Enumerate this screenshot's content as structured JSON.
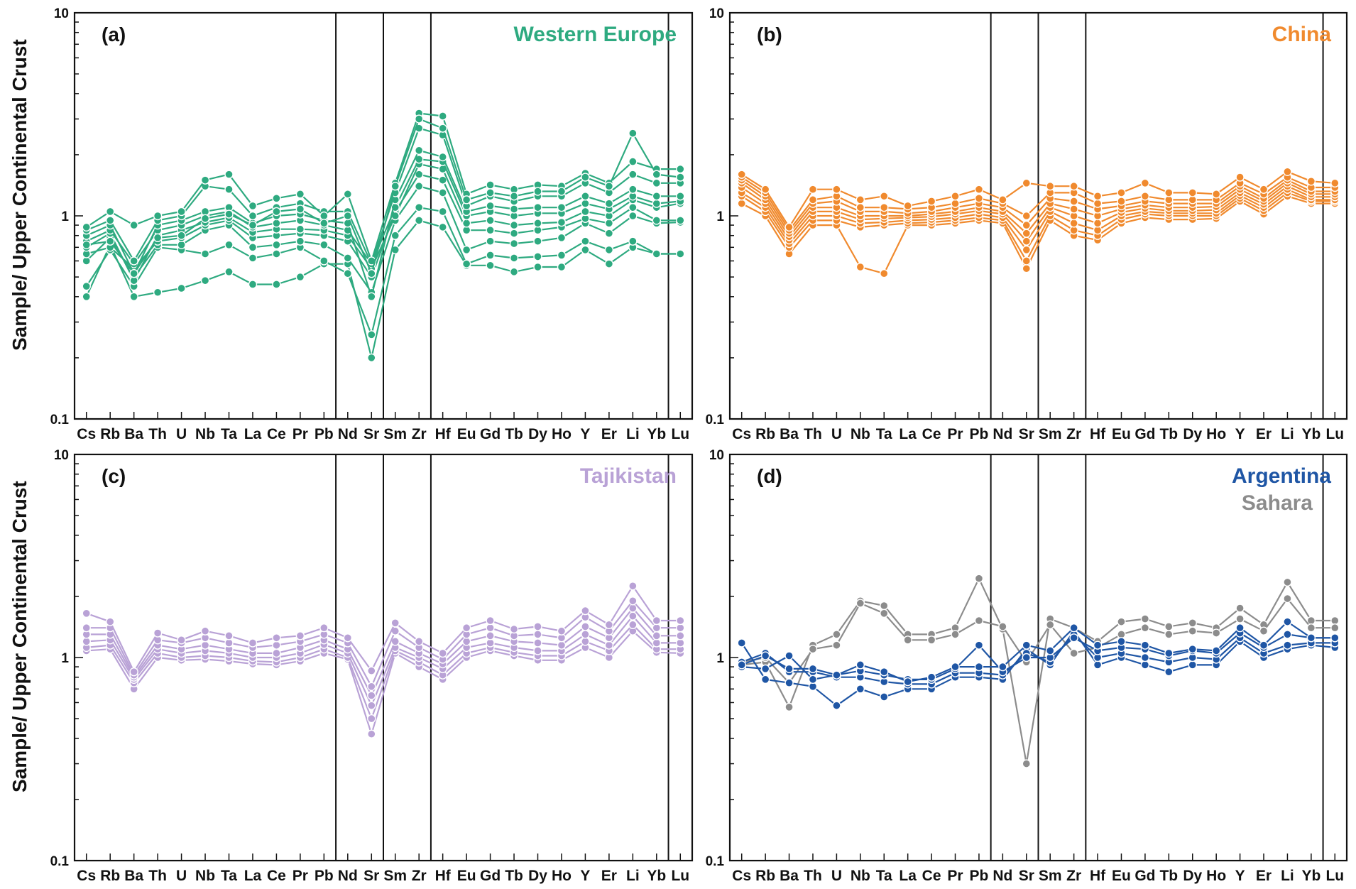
{
  "y_axis_title": "Sample/ Upper Continental Crust",
  "chart_data": [
    {
      "type": "line",
      "panel_label": "(a)",
      "region_label": "Western Europe",
      "region_color": "#2eaa80",
      "yscale": "log",
      "ylim": [
        0.1,
        10
      ],
      "y_ticks": [
        "0.1",
        "1",
        "10"
      ],
      "categories": [
        "Cs",
        "Rb",
        "Ba",
        "Th",
        "U",
        "Nb",
        "Ta",
        "La",
        "Ce",
        "Pr",
        "Pb",
        "Nd",
        "Sr",
        "Sm",
        "Zr",
        "Hf",
        "Eu",
        "Gd",
        "Tb",
        "Dy",
        "Ho",
        "Y",
        "Er",
        "Li",
        "Yb",
        "Lu"
      ],
      "vertical_lines_after": [
        "Pb",
        "Sr",
        "Zr",
        "Yb"
      ],
      "series": [
        {
          "color": "#2eaa80",
          "values": [
            0.4,
            0.72,
            0.4,
            0.42,
            0.44,
            0.48,
            0.53,
            0.46,
            0.46,
            0.5,
            0.58,
            0.58,
            0.2,
            0.68,
            0.95,
            0.88,
            0.57,
            0.57,
            0.53,
            0.56,
            0.56,
            0.68,
            0.58,
            0.7,
            0.65,
            0.65
          ]
        },
        {
          "color": "#2eaa80",
          "values": [
            0.45,
            0.68,
            0.45,
            0.7,
            0.68,
            0.65,
            0.72,
            0.62,
            0.65,
            0.7,
            0.6,
            0.52,
            0.26,
            0.8,
            1.1,
            1.05,
            0.58,
            0.64,
            0.62,
            0.63,
            0.64,
            0.75,
            0.68,
            0.75,
            0.65,
            0.65
          ]
        },
        {
          "color": "#2eaa80",
          "values": [
            0.6,
            0.78,
            0.5,
            0.72,
            0.72,
            0.85,
            0.9,
            0.7,
            0.72,
            0.75,
            0.72,
            0.62,
            0.42,
            0.95,
            1.4,
            1.3,
            0.68,
            0.75,
            0.73,
            0.75,
            0.78,
            0.92,
            0.82,
            1.0,
            0.92,
            0.93
          ]
        },
        {
          "color": "#2eaa80",
          "values": [
            0.65,
            0.7,
            0.55,
            0.75,
            0.78,
            0.9,
            0.95,
            0.78,
            0.8,
            0.82,
            0.8,
            0.75,
            0.5,
            1.05,
            1.6,
            1.5,
            0.85,
            0.85,
            0.82,
            0.85,
            0.88,
            0.97,
            0.92,
            1.1,
            0.95,
            0.95
          ]
        },
        {
          "color": "#2eaa80",
          "values": [
            0.7,
            0.82,
            0.48,
            0.8,
            0.85,
            0.93,
            0.98,
            0.83,
            0.86,
            0.86,
            0.85,
            0.8,
            0.55,
            1.0,
            1.8,
            1.7,
            0.92,
            0.95,
            0.9,
            0.92,
            0.93,
            1.05,
            1.0,
            1.2,
            1.1,
            1.15
          ]
        },
        {
          "color": "#2eaa80",
          "values": [
            0.75,
            0.85,
            0.58,
            0.85,
            0.9,
            1.0,
            1.05,
            0.88,
            0.92,
            0.95,
            0.9,
            0.85,
            0.58,
            1.1,
            1.9,
            1.85,
            1.0,
            1.05,
            1.0,
            1.03,
            1.03,
            1.15,
            1.08,
            1.25,
            1.15,
            1.18
          ]
        },
        {
          "color": "#2eaa80",
          "values": [
            0.8,
            0.9,
            0.52,
            0.9,
            0.95,
            1.05,
            1.1,
            0.92,
            1.0,
            1.02,
            0.95,
            0.92,
            0.4,
            1.2,
            2.1,
            1.95,
            1.05,
            1.12,
            1.08,
            1.1,
            1.1,
            1.25,
            1.15,
            1.35,
            1.25,
            1.25
          ]
        },
        {
          "color": "#2eaa80",
          "values": [
            0.85,
            0.95,
            0.6,
            0.95,
            1.0,
            1.4,
            1.35,
            1.0,
            1.1,
            1.15,
            1.05,
            1.05,
            0.58,
            1.3,
            2.7,
            2.5,
            1.12,
            1.25,
            1.18,
            1.25,
            1.25,
            1.45,
            1.3,
            1.6,
            1.45,
            1.45
          ]
        },
        {
          "color": "#2eaa80",
          "values": [
            0.88,
            1.05,
            0.9,
            1.0,
            1.05,
            1.5,
            1.6,
            1.12,
            1.22,
            1.28,
            1.0,
            1.28,
            0.6,
            1.45,
            3.2,
            3.1,
            1.28,
            1.42,
            1.35,
            1.42,
            1.4,
            1.62,
            1.45,
            1.85,
            1.7,
            1.7
          ]
        },
        {
          "color": "#2eaa80",
          "values": [
            0.72,
            0.75,
            0.52,
            0.78,
            0.8,
            0.97,
            1.02,
            0.9,
            1.05,
            1.08,
            0.92,
            1.0,
            0.52,
            1.4,
            3.0,
            2.7,
            1.2,
            1.3,
            1.25,
            1.32,
            1.32,
            1.55,
            1.4,
            2.55,
            1.6,
            1.55
          ]
        }
      ]
    },
    {
      "type": "line",
      "panel_label": "(b)",
      "region_label": "China",
      "region_color": "#f08a2e",
      "yscale": "log",
      "ylim": [
        0.1,
        10
      ],
      "y_ticks": [
        "0.1",
        "1",
        "10"
      ],
      "categories": [
        "Cs",
        "Rb",
        "Ba",
        "Th",
        "U",
        "Nb",
        "Ta",
        "La",
        "Ce",
        "Pr",
        "Pb",
        "Nd",
        "Sr",
        "Sm",
        "Zr",
        "Hf",
        "Eu",
        "Gd",
        "Tb",
        "Dy",
        "Ho",
        "Y",
        "Er",
        "Li",
        "Yb",
        "Lu"
      ],
      "vertical_lines_after": [
        "Pb",
        "Sr",
        "Zr",
        "Yb"
      ],
      "series": [
        {
          "color": "#f08a2e",
          "values": [
            1.15,
            1.0,
            0.65,
            0.9,
            0.9,
            0.56,
            0.52,
            0.9,
            0.9,
            0.92,
            0.95,
            0.92,
            0.55,
            0.95,
            0.8,
            0.76,
            0.92,
            0.98,
            0.96,
            0.96,
            0.97,
            1.18,
            1.02,
            1.25,
            1.15,
            1.15
          ]
        },
        {
          "color": "#f08a2e",
          "values": [
            1.25,
            1.05,
            0.7,
            0.95,
            0.95,
            0.88,
            0.9,
            0.92,
            0.93,
            0.95,
            0.98,
            0.95,
            0.6,
            1.0,
            0.85,
            0.8,
            0.96,
            1.02,
            1.0,
            1.0,
            1.0,
            1.22,
            1.06,
            1.3,
            1.18,
            1.18
          ]
        },
        {
          "color": "#f08a2e",
          "values": [
            1.3,
            1.1,
            0.73,
            1.0,
            1.0,
            0.92,
            0.93,
            0.95,
            0.96,
            0.98,
            1.02,
            0.98,
            0.68,
            1.05,
            0.92,
            0.85,
            1.0,
            1.05,
            1.03,
            1.03,
            1.03,
            1.26,
            1.1,
            1.35,
            1.2,
            1.2
          ]
        },
        {
          "color": "#f08a2e",
          "values": [
            1.38,
            1.15,
            0.76,
            1.05,
            1.05,
            0.96,
            0.97,
            0.98,
            0.99,
            1.02,
            1.06,
            1.02,
            0.75,
            1.1,
            1.0,
            0.92,
            1.04,
            1.09,
            1.06,
            1.06,
            1.07,
            1.3,
            1.14,
            1.4,
            1.24,
            1.24
          ]
        },
        {
          "color": "#f08a2e",
          "values": [
            1.45,
            1.2,
            0.79,
            1.1,
            1.1,
            1.0,
            1.0,
            1.0,
            1.02,
            1.05,
            1.1,
            1.05,
            0.82,
            1.15,
            1.08,
            1.0,
            1.08,
            1.13,
            1.1,
            1.1,
            1.11,
            1.35,
            1.18,
            1.45,
            1.28,
            1.28
          ]
        },
        {
          "color": "#f08a2e",
          "values": [
            1.5,
            1.25,
            0.82,
            1.15,
            1.18,
            1.05,
            1.05,
            1.03,
            1.05,
            1.1,
            1.15,
            1.1,
            0.9,
            1.22,
            1.18,
            1.08,
            1.12,
            1.18,
            1.15,
            1.15,
            1.15,
            1.4,
            1.22,
            1.5,
            1.32,
            1.32
          ]
        },
        {
          "color": "#f08a2e",
          "values": [
            1.55,
            1.3,
            0.85,
            1.2,
            1.25,
            1.1,
            1.1,
            1.08,
            1.1,
            1.15,
            1.22,
            1.15,
            1.0,
            1.3,
            1.3,
            1.15,
            1.18,
            1.25,
            1.2,
            1.2,
            1.2,
            1.45,
            1.28,
            1.55,
            1.38,
            1.38
          ]
        },
        {
          "color": "#f08a2e",
          "values": [
            1.6,
            1.35,
            0.88,
            1.35,
            1.35,
            1.2,
            1.25,
            1.12,
            1.18,
            1.25,
            1.35,
            1.2,
            1.45,
            1.4,
            1.4,
            1.25,
            1.3,
            1.45,
            1.3,
            1.3,
            1.28,
            1.55,
            1.35,
            1.65,
            1.48,
            1.45
          ]
        }
      ]
    },
    {
      "type": "line",
      "panel_label": "(c)",
      "region_label": "Tajikistan",
      "region_color": "#b9a2d6",
      "yscale": "log",
      "ylim": [
        0.1,
        10
      ],
      "y_ticks": [
        "0.1",
        "1",
        "10"
      ],
      "categories": [
        "Cs",
        "Rb",
        "Ba",
        "Th",
        "U",
        "Nb",
        "Ta",
        "La",
        "Ce",
        "Pr",
        "Pb",
        "Nd",
        "Sr",
        "Sm",
        "Zr",
        "Hf",
        "Eu",
        "Gd",
        "Tb",
        "Dy",
        "Ho",
        "Y",
        "Er",
        "Li",
        "Yb",
        "Lu"
      ],
      "vertical_lines_after": [
        "Pb",
        "Sr",
        "Zr",
        "Yb"
      ],
      "series": [
        {
          "color": "#b9a2d6",
          "values": [
            1.08,
            1.1,
            0.7,
            1.0,
            0.97,
            0.98,
            0.96,
            0.93,
            0.92,
            0.96,
            1.05,
            0.98,
            0.42,
            1.05,
            0.9,
            0.78,
            1.0,
            1.08,
            1.02,
            0.97,
            0.97,
            1.12,
            1.0,
            1.35,
            1.06,
            1.05
          ]
        },
        {
          "color": "#b9a2d6",
          "values": [
            1.12,
            1.15,
            0.75,
            1.05,
            1.0,
            1.02,
            1.0,
            0.96,
            0.95,
            1.0,
            1.1,
            1.0,
            0.5,
            1.08,
            0.95,
            0.82,
            1.05,
            1.12,
            1.06,
            1.02,
            1.02,
            1.2,
            1.08,
            1.45,
            1.1,
            1.1
          ]
        },
        {
          "color": "#b9a2d6",
          "values": [
            1.2,
            1.22,
            0.78,
            1.1,
            1.05,
            1.08,
            1.05,
            1.0,
            1.0,
            1.05,
            1.16,
            1.05,
            0.58,
            1.12,
            1.0,
            0.88,
            1.12,
            1.18,
            1.12,
            1.08,
            1.08,
            1.3,
            1.15,
            1.6,
            1.18,
            1.18
          ]
        },
        {
          "color": "#b9a2d6",
          "values": [
            1.3,
            1.3,
            0.8,
            1.15,
            1.1,
            1.15,
            1.1,
            1.05,
            1.05,
            1.12,
            1.22,
            1.1,
            0.65,
            1.2,
            1.05,
            0.93,
            1.2,
            1.28,
            1.2,
            1.18,
            1.15,
            1.42,
            1.25,
            1.75,
            1.28,
            1.28
          ]
        },
        {
          "color": "#b9a2d6",
          "values": [
            1.4,
            1.4,
            0.82,
            1.22,
            1.18,
            1.25,
            1.18,
            1.12,
            1.15,
            1.2,
            1.3,
            1.18,
            0.72,
            1.35,
            1.12,
            0.98,
            1.3,
            1.4,
            1.28,
            1.3,
            1.25,
            1.58,
            1.35,
            1.9,
            1.4,
            1.4
          ]
        },
        {
          "color": "#b9a2d6",
          "values": [
            1.65,
            1.5,
            0.85,
            1.32,
            1.22,
            1.35,
            1.28,
            1.18,
            1.25,
            1.28,
            1.4,
            1.25,
            0.86,
            1.48,
            1.2,
            1.05,
            1.4,
            1.52,
            1.38,
            1.42,
            1.35,
            1.7,
            1.45,
            2.25,
            1.52,
            1.52
          ]
        }
      ]
    },
    {
      "type": "line",
      "panel_label": "(d)",
      "region_label": "Argentina",
      "region_color": "#1f56a5",
      "region_label_2": "Sahara",
      "region_color_2": "#8c8c8c",
      "yscale": "log",
      "ylim": [
        0.1,
        10
      ],
      "y_ticks": [
        "0.1",
        "1",
        "10"
      ],
      "categories": [
        "Cs",
        "Rb",
        "Ba",
        "Th",
        "U",
        "Nb",
        "Ta",
        "La",
        "Ce",
        "Pr",
        "Pb",
        "Nd",
        "Sr",
        "Sm",
        "Zr",
        "Hf",
        "Eu",
        "Gd",
        "Tb",
        "Dy",
        "Ho",
        "Y",
        "Er",
        "Li",
        "Yb",
        "Lu"
      ],
      "vertical_lines_after": [
        "Pb",
        "Sr",
        "Zr",
        "Yb"
      ],
      "series": [
        {
          "color": "#8c8c8c",
          "values": [
            0.92,
            0.95,
            0.57,
            1.15,
            1.3,
            1.9,
            1.8,
            1.3,
            1.3,
            1.4,
            2.45,
            1.38,
            0.3,
            1.55,
            1.4,
            1.2,
            1.5,
            1.55,
            1.42,
            1.48,
            1.4,
            1.75,
            1.45,
            2.35,
            1.52,
            1.52
          ]
        },
        {
          "color": "#8c8c8c",
          "values": [
            0.95,
            1.0,
            0.75,
            1.1,
            1.15,
            1.85,
            1.65,
            1.22,
            1.22,
            1.3,
            1.52,
            1.42,
            0.95,
            1.45,
            1.05,
            1.12,
            1.3,
            1.4,
            1.3,
            1.35,
            1.32,
            1.55,
            1.35,
            1.95,
            1.4,
            1.4
          ]
        },
        {
          "color": "#1f56a5",
          "values": [
            1.18,
            0.78,
            0.75,
            0.72,
            0.58,
            0.7,
            0.64,
            0.7,
            0.7,
            0.8,
            0.8,
            0.78,
            1.1,
            0.92,
            1.35,
            0.92,
            1.0,
            0.92,
            0.85,
            0.92,
            0.92,
            1.2,
            1.0,
            1.1,
            1.15,
            1.12
          ]
        },
        {
          "color": "#1f56a5",
          "values": [
            0.95,
            1.05,
            0.85,
            0.85,
            0.8,
            0.8,
            0.76,
            0.74,
            0.74,
            0.84,
            0.84,
            0.82,
            1.05,
            0.95,
            1.3,
            1.0,
            1.05,
            1.0,
            0.95,
            1.0,
            0.98,
            1.25,
            1.05,
            1.15,
            1.18,
            1.18
          ]
        },
        {
          "color": "#1f56a5",
          "values": [
            0.9,
            0.88,
            1.02,
            0.78,
            0.82,
            0.86,
            0.82,
            0.78,
            0.78,
            0.88,
            1.15,
            0.85,
            1.0,
            1.0,
            1.25,
            1.08,
            1.12,
            1.1,
            1.02,
            1.08,
            1.05,
            1.32,
            1.12,
            1.3,
            1.25,
            1.25
          ]
        },
        {
          "color": "#1f56a5",
          "values": [
            0.92,
            1.02,
            0.88,
            0.88,
            0.82,
            0.92,
            0.85,
            0.76,
            0.8,
            0.9,
            0.9,
            0.9,
            1.15,
            1.08,
            1.4,
            1.15,
            1.2,
            1.15,
            1.05,
            1.1,
            1.08,
            1.4,
            1.15,
            1.5,
            1.25,
            1.25
          ]
        }
      ]
    }
  ]
}
